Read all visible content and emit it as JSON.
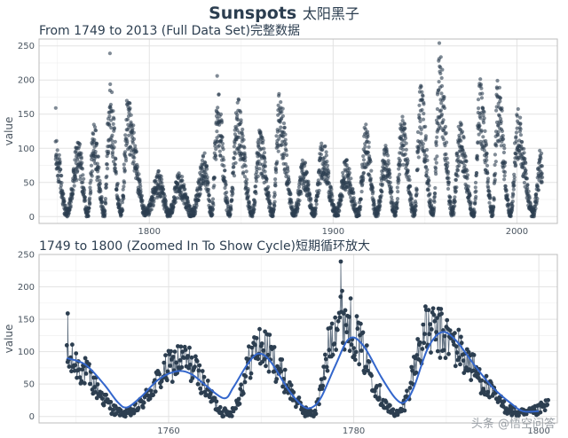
{
  "title": "Sunspots",
  "title_cjk": "太阳黑子",
  "watermark": "头条 @悟空问答",
  "colors": {
    "points": "#2c3e50",
    "line": "#2c3e50",
    "smooth": "#3366cc",
    "grid": "#e3e3e3"
  },
  "chart_data": [
    {
      "type": "scatter",
      "title": "From 1749 to 2013 (Full Data Set)完整数据",
      "xlabel": "",
      "ylabel": "value",
      "xlim": [
        1740,
        2022
      ],
      "ylim": [
        -10,
        260
      ],
      "xticks": [
        1800,
        1900,
        2000
      ],
      "yticks": [
        0,
        50,
        100,
        150,
        200,
        250
      ],
      "grid": true,
      "cycles": [
        {
          "min_year": 1755.2,
          "max_year": 1761.5,
          "peak": 86
        },
        {
          "min_year": 1766.5,
          "max_year": 1769.7,
          "peak": 106
        },
        {
          "min_year": 1775.5,
          "max_year": 1778.4,
          "peak": 154
        },
        {
          "min_year": 1784.7,
          "max_year": 1788.1,
          "peak": 132
        },
        {
          "min_year": 1798.3,
          "max_year": 1805.2,
          "peak": 48
        },
        {
          "min_year": 1810.6,
          "max_year": 1816.4,
          "peak": 46
        },
        {
          "min_year": 1823.3,
          "max_year": 1829.9,
          "peak": 71
        },
        {
          "min_year": 1833.9,
          "max_year": 1837.2,
          "peak": 147
        },
        {
          "min_year": 1843.5,
          "max_year": 1848.1,
          "peak": 131
        },
        {
          "min_year": 1856.0,
          "max_year": 1860.1,
          "peak": 97
        },
        {
          "min_year": 1867.2,
          "max_year": 1870.6,
          "peak": 139
        },
        {
          "min_year": 1878.9,
          "max_year": 1883.9,
          "peak": 63
        },
        {
          "min_year": 1889.6,
          "max_year": 1894.1,
          "peak": 85
        },
        {
          "min_year": 1901.7,
          "max_year": 1907.0,
          "peak": 62
        },
        {
          "min_year": 1913.6,
          "max_year": 1917.6,
          "peak": 104
        },
        {
          "min_year": 1923.6,
          "max_year": 1928.4,
          "peak": 78
        },
        {
          "min_year": 1933.8,
          "max_year": 1937.4,
          "peak": 114
        },
        {
          "min_year": 1944.2,
          "max_year": 1947.5,
          "peak": 151
        },
        {
          "min_year": 1954.3,
          "max_year": 1957.9,
          "peak": 190
        },
        {
          "min_year": 1964.9,
          "max_year": 1968.9,
          "peak": 106
        },
        {
          "min_year": 1976.5,
          "max_year": 1979.9,
          "peak": 155
        },
        {
          "min_year": 1986.8,
          "max_year": 1989.6,
          "peak": 158
        },
        {
          "min_year": 1996.4,
          "max_year": 2000.3,
          "peak": 120
        },
        {
          "min_year": 2008.9,
          "max_year": 2013.0,
          "peak": 75
        }
      ],
      "outliers": [
        {
          "x": 1749.1,
          "y": 159
        },
        {
          "x": 1778.6,
          "y": 239
        },
        {
          "x": 1836.9,
          "y": 206
        },
        {
          "x": 1957.8,
          "y": 254
        },
        {
          "x": 1989.4,
          "y": 199
        }
      ]
    },
    {
      "type": "line",
      "title": "1749 to 1800 (Zoomed In To Show Cycle)短期循环放大",
      "xlabel": "",
      "ylabel": "value",
      "xlim": [
        1746,
        1802
      ],
      "ylim": [
        -10,
        250
      ],
      "xticks": [
        1760,
        1780,
        1800
      ],
      "yticks": [
        0,
        50,
        100,
        150,
        200,
        250
      ],
      "grid": true,
      "series": [
        {
          "type": "line+points"
        },
        {
          "type": "smooth"
        }
      ],
      "smooth_x": [
        1749,
        1751,
        1753,
        1754.5,
        1755.5,
        1757,
        1759,
        1761,
        1762.5,
        1764,
        1766,
        1767,
        1768.5,
        1769.7,
        1771,
        1773,
        1774.5,
        1775.5,
        1776.5,
        1778,
        1779.5,
        1781,
        1783,
        1784.5,
        1785.5,
        1786.5,
        1788,
        1789.5,
        1791,
        1793,
        1795,
        1797,
        1798.3,
        1800
      ],
      "smooth_y": [
        90,
        80,
        50,
        22,
        14,
        30,
        58,
        70,
        65,
        48,
        28,
        45,
        80,
        97,
        85,
        40,
        16,
        14,
        30,
        78,
        120,
        110,
        60,
        28,
        22,
        45,
        105,
        130,
        118,
        80,
        45,
        20,
        8,
        8
      ]
    }
  ]
}
